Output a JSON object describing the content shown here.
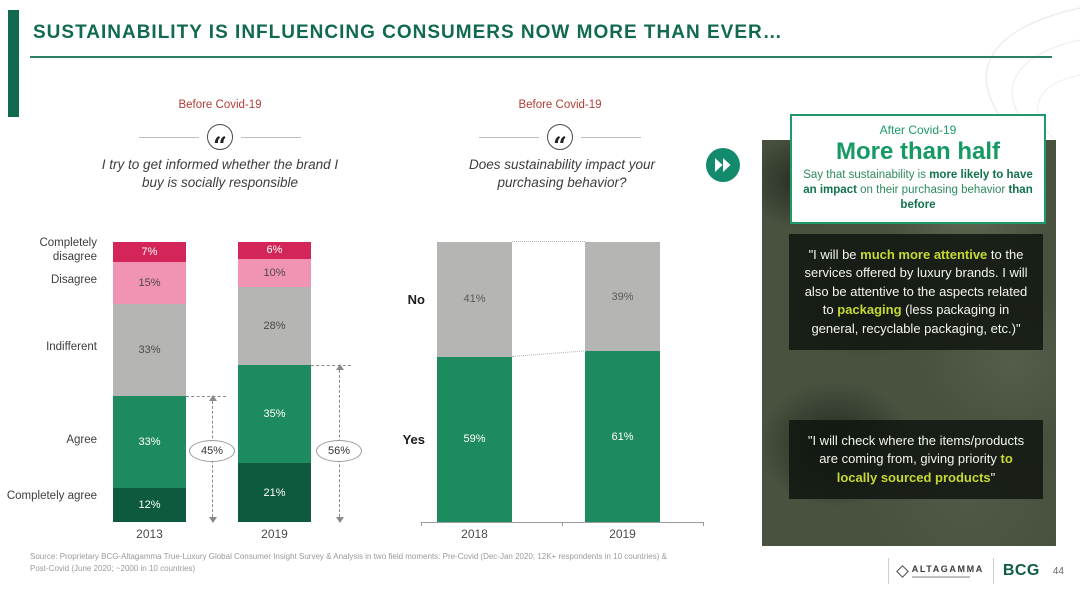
{
  "slide": {
    "title": "SUSTAINABILITY IS INFLUENCING CONSUMERS NOW MORE THAN EVER…",
    "page_number": "44",
    "source": "Source: Proprietary BCG-Altagamma True-Luxury Global Consumer Insight Survey & Analysis in two field moments: Pre-Covid (Dec-Jan 2020; 12K+ respondents in 10 countries)  & Post-Covid (June 2020; ~2000 in 10 countries)",
    "logos": {
      "altagamma": "ALTAGAMMA",
      "bcg": "BCG"
    },
    "colors": {
      "title_green": "#116a50",
      "header_red": "#b13c35",
      "accent_green": "#1e8a60",
      "highlight_yellow_green": "#c6d831",
      "fast_forward_teal": "#128a6c"
    }
  },
  "icons": {
    "quote": "“",
    "fast_forward": "fast-forward-double-chevron"
  },
  "chart_data": [
    {
      "type": "bar",
      "stacked": true,
      "header": "Before Covid-19",
      "question": "I try to get informed whether the brand I buy is socially responsible",
      "categories": [
        "2013",
        "2019"
      ],
      "ylim": [
        0,
        100
      ],
      "series": [
        {
          "name": "Completely disagree",
          "color": "#d4255b",
          "label_color": "#ffffff",
          "values": [
            7,
            6
          ]
        },
        {
          "name": "Disagree",
          "color": "#f193b2",
          "label_color": "#4a4a4a",
          "values": [
            15,
            10
          ]
        },
        {
          "name": "Indifferent",
          "color": "#b5b5b4",
          "label_color": "#4a4a4a",
          "values": [
            33,
            28
          ]
        },
        {
          "name": "Agree",
          "color": "#1e8a60",
          "label_color": "#ffffff",
          "values": [
            33,
            35
          ]
        },
        {
          "name": "Completely agree",
          "color": "#0e5a3e",
          "label_color": "#ffffff",
          "values": [
            12,
            21
          ]
        }
      ],
      "annotations": [
        {
          "label": "45%",
          "value": 45,
          "category": "2013"
        },
        {
          "label": "56%",
          "value": 56,
          "category": "2019"
        }
      ]
    },
    {
      "type": "bar",
      "stacked": true,
      "header": "Before Covid-19",
      "question": "Does sustainability impact your purchasing behavior?",
      "categories": [
        "2018",
        "2019"
      ],
      "ylim": [
        0,
        100
      ],
      "series": [
        {
          "name": "No",
          "color": "#b5b5b4",
          "label_color": "#5a5a5a",
          "values": [
            41,
            39
          ]
        },
        {
          "name": "Yes",
          "color": "#1e8a60",
          "label_color": "#ffffff",
          "values": [
            59,
            61
          ]
        }
      ]
    }
  ],
  "right_panel": {
    "after_label": "After Covid-19",
    "headline": "More than half",
    "subtitle_parts": [
      {
        "text": "Say that sustainability is "
      },
      {
        "text": "more likely to have an impact",
        "bold": true
      },
      {
        "text": " on their purchasing behavior "
      },
      {
        "text": "than before",
        "bold": true
      }
    ],
    "quote1_parts": [
      {
        "text": "\"I will be "
      },
      {
        "text": "much more attentive",
        "highlight": true
      },
      {
        "text": " to the services offered by luxury brands. I will also be attentive to the aspects related to "
      },
      {
        "text": "packaging",
        "highlight": true
      },
      {
        "text": " (less packaging in general, recyclable packaging, etc.)\""
      }
    ],
    "quote2_parts": [
      {
        "text": "\"I will check where the items/products are coming from, giving priority "
      },
      {
        "text": "to locally sourced products",
        "highlight": true
      },
      {
        "text": "\""
      }
    ]
  }
}
